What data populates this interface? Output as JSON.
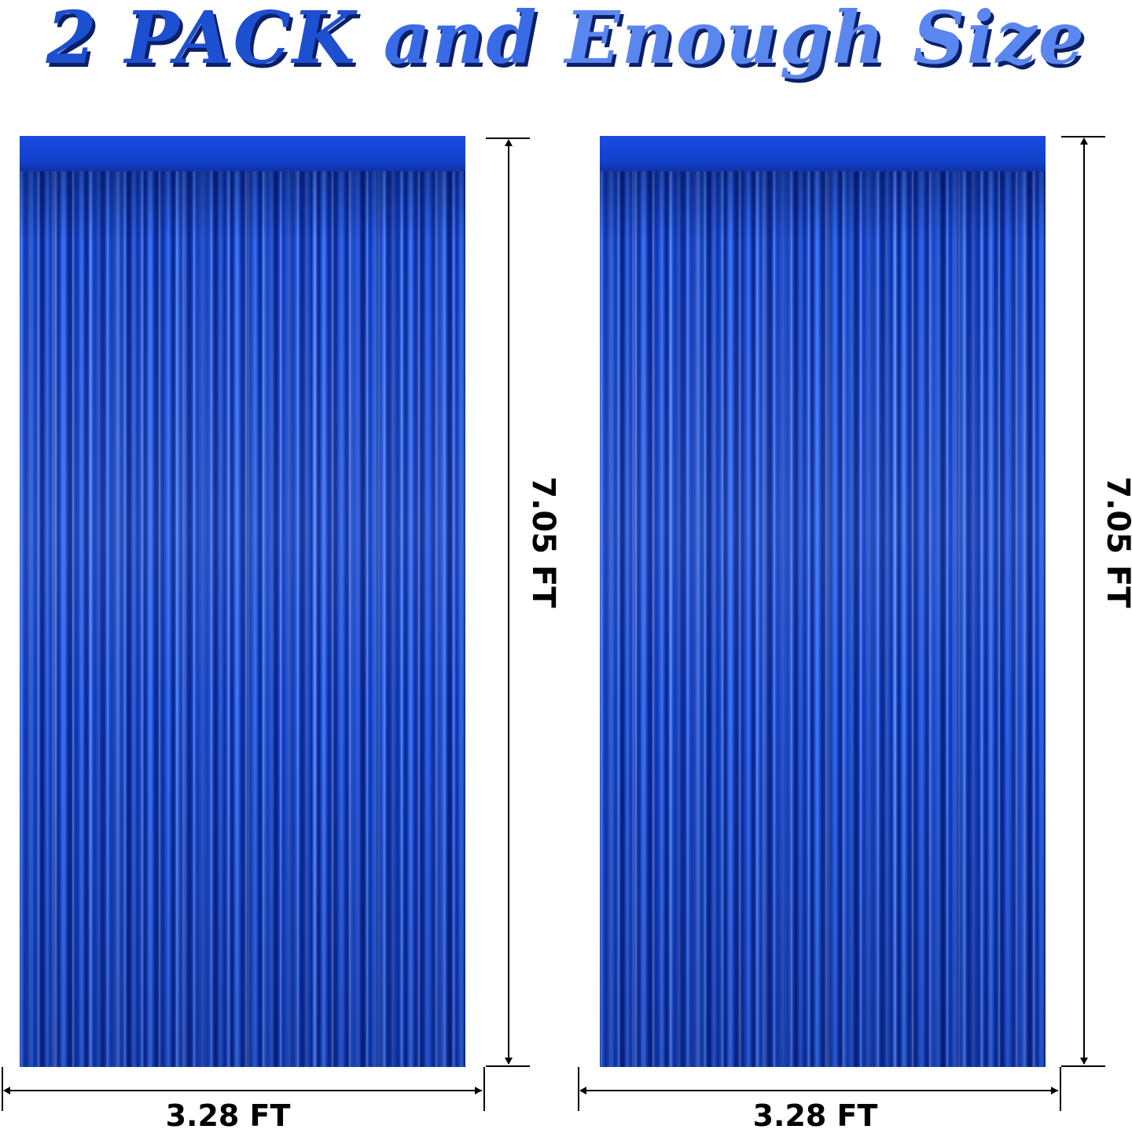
{
  "headline": {
    "part1": "2 PACK",
    "part2": "and",
    "part3": "Enough Size"
  },
  "colors": {
    "headline_blue_dark": "#1d4fd1",
    "headline_blue_light": "#5a86ef",
    "curtain_blue": "#1645d6",
    "dimension_line": "#000000"
  },
  "curtains": [
    {
      "height_label": "7.05 FT",
      "width_label": "3.28 FT"
    },
    {
      "height_label": "7.05 FT",
      "width_label": "3.28 FT"
    }
  ]
}
